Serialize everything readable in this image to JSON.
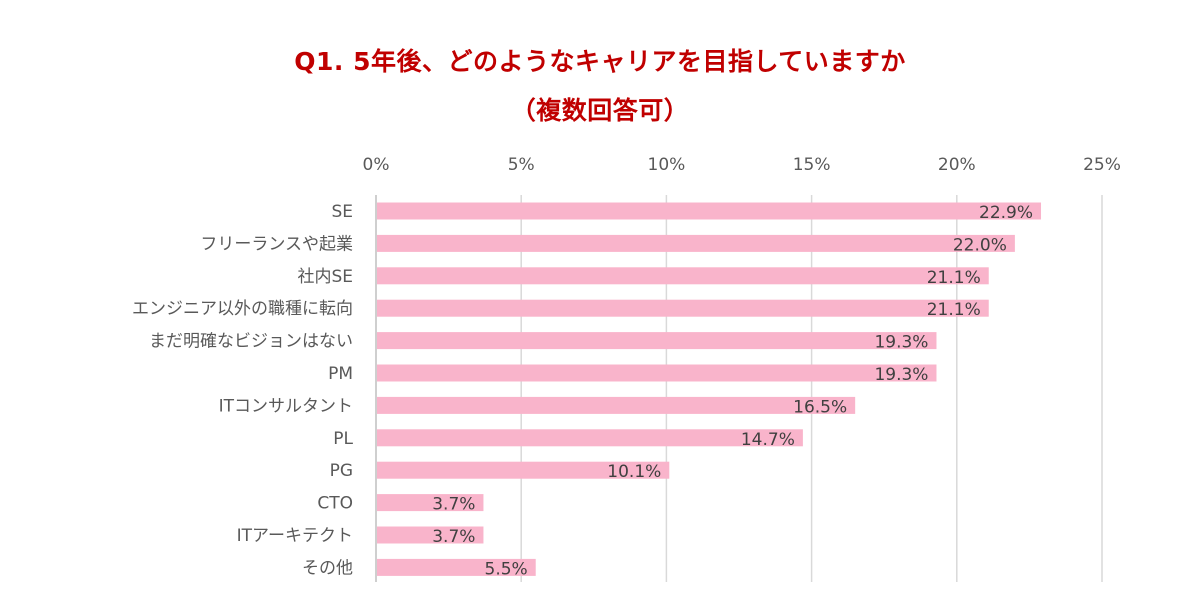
{
  "chart_data": {
    "type": "bar",
    "orientation": "horizontal",
    "title": "Q1. 5年後、どのようなキャリアを目指していますか",
    "subtitle": "（複数回答可）",
    "categories": [
      "SE",
      "フリーランスや起業",
      "社内SE",
      "エンジニア以外の職種に転向",
      "まだ明確なビジョンはない",
      "PM",
      "ITコンサルタント",
      "PL",
      "PG",
      "CTO",
      "ITアーキテクト",
      "その他"
    ],
    "values": [
      22.9,
      22.0,
      21.1,
      21.1,
      19.3,
      19.3,
      16.5,
      14.7,
      10.1,
      3.7,
      3.7,
      5.5
    ],
    "value_labels": [
      "22.9%",
      "22.0%",
      "21.1%",
      "21.1%",
      "19.3%",
      "19.3%",
      "16.5%",
      "14.7%",
      "10.1%",
      "3.7%",
      "3.7%",
      "5.5%"
    ],
    "xticks": [
      "0%",
      "5%",
      "10%",
      "15%",
      "20%",
      "25%"
    ],
    "xlim": [
      0,
      25
    ],
    "x_axis_position": "top",
    "grid": true,
    "bar_color": "#f9b4cb",
    "title_color": "#c00000"
  }
}
